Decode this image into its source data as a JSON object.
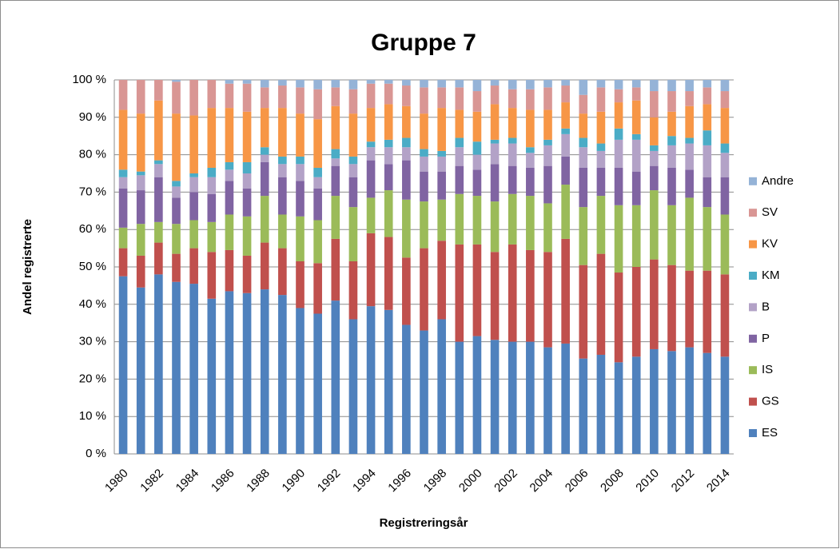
{
  "chart_data": {
    "type": "bar",
    "stacked": true,
    "title": "Gruppe 7",
    "xlabel": "Registreringsår",
    "ylabel": "Andel registrerte",
    "categories": [
      "1980",
      null,
      "1982",
      null,
      "1984",
      null,
      "1986",
      null,
      "1988",
      null,
      "1990",
      null,
      "1992",
      null,
      "1994",
      null,
      "1996",
      null,
      "1998",
      null,
      "2000",
      null,
      "2002",
      null,
      "2004",
      null,
      "2006",
      null,
      "2008",
      null,
      "2010",
      null,
      "2012",
      null,
      "2014"
    ],
    "series": [
      {
        "name": "ES",
        "color": "#4f81bd",
        "values": [
          47.5,
          44.5,
          48,
          46,
          45.5,
          41.5,
          43.5,
          43,
          44,
          42.5,
          39,
          37.5,
          41,
          36,
          39.5,
          38.5,
          34.5,
          33,
          36,
          30,
          31.5,
          30.5,
          30,
          30,
          28.5,
          29.5,
          25.5,
          26.5,
          24.5,
          26,
          28,
          27.5,
          28.5,
          27,
          26
        ]
      },
      {
        "name": "GS",
        "color": "#c0504d",
        "values": [
          7.5,
          8.5,
          8.5,
          7.5,
          9.5,
          12.5,
          11,
          10,
          12.5,
          12.5,
          12.5,
          13.5,
          16.5,
          15.5,
          19.5,
          19.5,
          18,
          22,
          21,
          26,
          24.5,
          23.5,
          26,
          24.5,
          25.5,
          28,
          25,
          27,
          24,
          24,
          24,
          23,
          20.5,
          22,
          22
        ]
      },
      {
        "name": "IS",
        "color": "#9bbb59",
        "values": [
          5.5,
          8.5,
          5.5,
          8,
          7.5,
          8,
          9.5,
          10.5,
          12.5,
          9,
          12,
          11.5,
          11.5,
          14.5,
          9.5,
          12.5,
          15.5,
          12.5,
          11,
          13.5,
          13,
          13.5,
          13.5,
          14.5,
          13,
          14.5,
          15.5,
          15.5,
          18,
          16.5,
          18.5,
          16,
          19.5,
          17,
          16
        ]
      },
      {
        "name": "P",
        "color": "#8064a2",
        "values": [
          10.5,
          9,
          12,
          7,
          7.5,
          7.5,
          9,
          7.5,
          9,
          10,
          9.5,
          8.5,
          8,
          8,
          10,
          7,
          10.5,
          8,
          7.5,
          7.5,
          7,
          10,
          7.5,
          7.5,
          10,
          7.5,
          10.5,
          7.5,
          10,
          9,
          6.5,
          10,
          7.5,
          8,
          10
        ]
      },
      {
        "name": "B",
        "color": "#b3a2c7",
        "values": [
          3,
          4,
          3.5,
          3,
          4,
          4.5,
          3,
          4,
          2,
          3.5,
          4.5,
          3,
          2,
          3.5,
          3.5,
          4.5,
          3.5,
          4,
          4,
          5,
          4,
          5.5,
          6,
          4,
          5.5,
          6,
          5.5,
          4.5,
          7.5,
          8.5,
          4,
          6,
          7,
          8.5,
          6.5
        ]
      },
      {
        "name": "KM",
        "color": "#4bacc6",
        "values": [
          2,
          1,
          1,
          1.5,
          1,
          2.5,
          2,
          3,
          2,
          2,
          2,
          2.5,
          2.5,
          2,
          1.5,
          2,
          2.5,
          2,
          1.5,
          2.5,
          3.5,
          1,
          1.5,
          1.5,
          1.5,
          1.5,
          2.5,
          2,
          3,
          1.5,
          1.5,
          2.5,
          1.5,
          4,
          2.5
        ]
      },
      {
        "name": "KV",
        "color": "#f79646",
        "values": [
          16,
          15.5,
          16,
          18,
          15.5,
          16,
          14.5,
          13.5,
          10.5,
          13,
          11.5,
          13,
          11.5,
          11.5,
          9,
          9.5,
          8.5,
          9.5,
          11.5,
          7.5,
          8,
          9.5,
          8,
          10,
          8,
          7,
          6.5,
          8.5,
          7,
          9,
          7.5,
          6.5,
          8.5,
          7,
          9.5
        ]
      },
      {
        "name": "SV",
        "color": "#d99694",
        "values": [
          8,
          9,
          5.5,
          8.5,
          9.5,
          7.5,
          6.5,
          7.5,
          5.5,
          6,
          7,
          8,
          5,
          6.5,
          6.5,
          5.5,
          5.5,
          7,
          5.5,
          6,
          5.5,
          5,
          5,
          5.5,
          6,
          4.5,
          5,
          6.5,
          3.5,
          3.5,
          7,
          5.5,
          4,
          4.5,
          4.5
        ]
      },
      {
        "name": "Andre",
        "color": "#95b3d7",
        "values": [
          0,
          0,
          0,
          0.5,
          0,
          0,
          1,
          1,
          2,
          1.5,
          2,
          2.5,
          2,
          2.5,
          1,
          1,
          1.5,
          2,
          2,
          2,
          3,
          1.5,
          2.5,
          2.5,
          2,
          1.5,
          4,
          2,
          2.5,
          2,
          3,
          3,
          3,
          2,
          3
        ]
      }
    ],
    "ylim": [
      0,
      100
    ],
    "yticks": [
      {
        "value": 0,
        "label": "0 %"
      },
      {
        "value": 10,
        "label": "10 %"
      },
      {
        "value": 20,
        "label": "20 %"
      },
      {
        "value": 30,
        "label": "30 %"
      },
      {
        "value": 40,
        "label": "40 %"
      },
      {
        "value": 50,
        "label": "50 %"
      },
      {
        "value": 60,
        "label": "60 %"
      },
      {
        "value": 70,
        "label": "70 %"
      },
      {
        "value": 80,
        "label": "80 %"
      },
      {
        "value": 90,
        "label": "90 %"
      },
      {
        "value": 100,
        "label": "100 %"
      }
    ],
    "grid": true,
    "legend": "right"
  }
}
